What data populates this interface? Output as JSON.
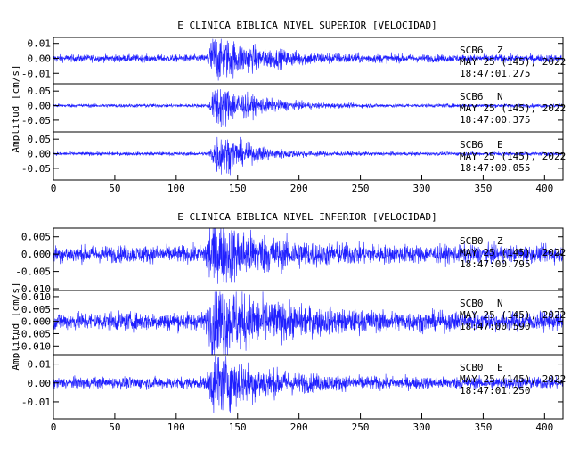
{
  "colors": {
    "trace": "#1f1fff",
    "axis": "#000000",
    "background": "#ffffff"
  },
  "chart_data": [
    {
      "type": "line",
      "title": "E CLINICA BIBLICA NIVEL SUPERIOR [VELOCIDAD]",
      "ylabel": "Amplitud [cm/s]",
      "xlim": [
        0,
        415
      ],
      "x_ticks": [
        "0",
        "50",
        "100",
        "150",
        "200",
        "250",
        "300",
        "350",
        "400"
      ],
      "grid": false,
      "series": [
        {
          "station": "SCB6",
          "component": "Z",
          "date": "MAY 25 (145), 2022",
          "time": "18:47:01.275",
          "ylim": [
            -0.017,
            0.014
          ],
          "y_ticks": [
            "0.01",
            "0.00",
            "-0.01"
          ],
          "noise": 0.0012,
          "peak": 0.013,
          "event_start": 124,
          "event_peak": 130,
          "coda": 40
        },
        {
          "station": "SCB6",
          "component": "N",
          "date": "MAY 25 (145), 2022",
          "time": "18:47:00.375",
          "ylim": [
            -0.09,
            0.075
          ],
          "y_ticks": [
            "0.05",
            "0.00",
            "-0.05"
          ],
          "noise": 0.003,
          "peak": 0.07,
          "event_start": 126,
          "event_peak": 134,
          "coda": 28
        },
        {
          "station": "SCB6",
          "component": "E",
          "date": "MAY 25 (145), 2022",
          "time": "18:47:00.055",
          "ylim": [
            -0.09,
            0.075
          ],
          "y_ticks": [
            "0.05",
            "0.00",
            "-0.05"
          ],
          "noise": 0.003,
          "peak": 0.065,
          "event_start": 126,
          "event_peak": 134,
          "coda": 26
        }
      ]
    },
    {
      "type": "line",
      "title": "E CLINICA BIBLICA NIVEL INFERIOR [VELOCIDAD]",
      "ylabel": "Amplitud [cm/s]",
      "xlim": [
        0,
        415
      ],
      "x_ticks": [
        "0",
        "50",
        "100",
        "150",
        "200",
        "250",
        "300",
        "350",
        "400"
      ],
      "grid": false,
      "series": [
        {
          "station": "SCB0",
          "component": "Z",
          "date": "MAY 25 (145), 2022",
          "time": "18:47:00.795",
          "ylim": [
            -0.0105,
            0.0075
          ],
          "y_ticks": [
            "0.005",
            "0.000",
            "-0.005",
            "-0.010"
          ],
          "noise": 0.0012,
          "peak": 0.0075,
          "event_start": 122,
          "event_peak": 128,
          "coda": 45
        },
        {
          "station": "SCB0",
          "component": "N",
          "date": "MAY 25 (145), 2022",
          "time": "18:47:00.590",
          "ylim": [
            -0.0135,
            0.0125
          ],
          "y_ticks": [
            "0.010",
            "0.005",
            "0.000",
            "-0.005",
            "-0.010"
          ],
          "noise": 0.0018,
          "peak": 0.012,
          "event_start": 124,
          "event_peak": 131,
          "coda": 45
        },
        {
          "station": "SCB0",
          "component": "E",
          "date": "MAY 25 (145), 2022",
          "time": "18:47:01.250",
          "ylim": [
            -0.019,
            0.015
          ],
          "y_ticks": [
            "0.01",
            "0.00",
            "-0.01"
          ],
          "noise": 0.0015,
          "peak": 0.014,
          "event_start": 124,
          "event_peak": 131,
          "coda": 38
        }
      ]
    }
  ]
}
